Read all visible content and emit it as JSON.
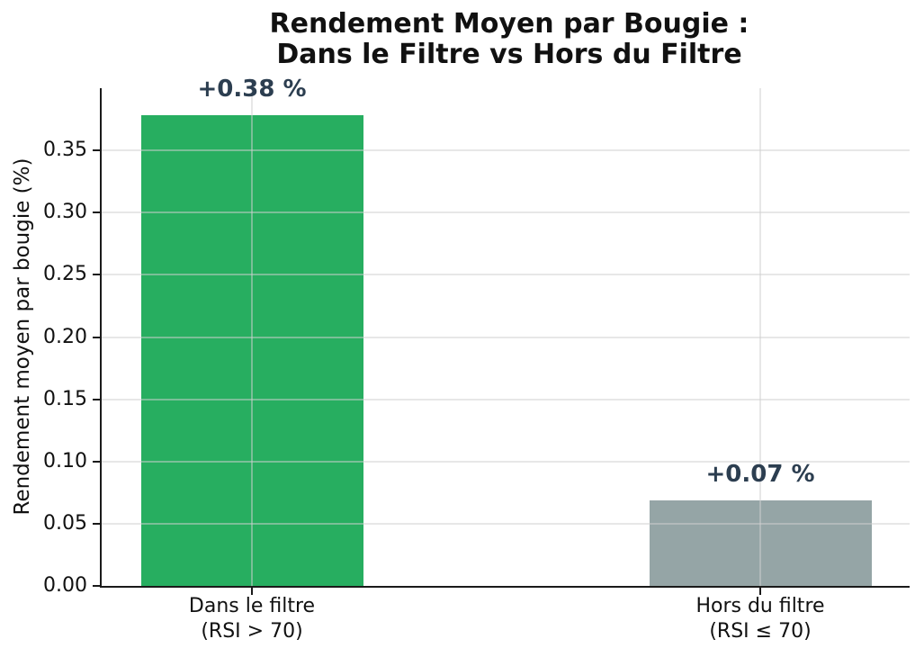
{
  "chart_data": {
    "type": "bar",
    "title_lines": [
      "Rendement Moyen par Bougie :",
      "Dans le Filtre vs Hors du Filtre"
    ],
    "ylabel": "Rendement moyen par bougie (%)",
    "xlabel": "",
    "categories": [
      [
        "Dans le filtre",
        "(RSI > 70)"
      ],
      [
        "Hors du filtre",
        "(RSI ≤ 70)"
      ]
    ],
    "values": [
      0.378,
      0.069
    ],
    "value_labels": [
      "+0.38 %",
      "+0.07 %"
    ],
    "bar_colors": [
      "#27ae60",
      "#95a5a6"
    ],
    "value_label_color": "#2c3e50",
    "ylim": [
      0,
      0.4
    ],
    "yticks": [
      0.0,
      0.05,
      0.1,
      0.15,
      0.2,
      0.25,
      0.3,
      0.35
    ],
    "ytick_labels": [
      "0.00",
      "0.05",
      "0.10",
      "0.15",
      "0.20",
      "0.25",
      "0.30",
      "0.35"
    ],
    "grid": true,
    "grid_axes": "both",
    "legend": "none"
  }
}
